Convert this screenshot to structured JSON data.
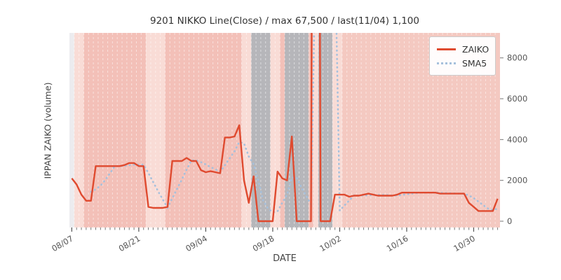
{
  "title": "9201 NIKKO Line(Close) / max 67,500 / last(11/04) 1,100",
  "axes": {
    "x_label": "DATE",
    "y_label": "IPPAN ZAIKO (volume)",
    "x_major_tick_labels": [
      "08/07",
      "08/21",
      "09/04",
      "09/18",
      "10/02",
      "10/16",
      "10/30"
    ],
    "x_major_tick_slots": [
      0,
      14,
      28,
      42,
      56,
      70,
      84
    ],
    "y_tick_values": [
      0,
      2000,
      4000,
      6000,
      8000
    ],
    "y_axis_side": "right",
    "y_value_max_visible": 9220,
    "x_total_slots": 90,
    "tick_color": "#555555"
  },
  "legend": {
    "position": "upper-right",
    "entries": [
      {
        "label": "ZAIKO",
        "style": "solid",
        "color": "#df4a2f"
      },
      {
        "label": "SMA5",
        "style": "dotted",
        "color": "#a6c0dc"
      }
    ]
  },
  "chart_data": {
    "type": "line",
    "title": "9201 NIKKO Line(Close) / max 67,500 / last(11/04) 1,100",
    "xlabel": "DATE",
    "ylabel": "IPPAN ZAIKO (volume)",
    "x_unit": "calendar-day index starting 08/07, major tick every 14 days",
    "ylim_visible": [
      -310,
      9220
    ],
    "max_value": 67500,
    "last_point": {
      "date": "11/04",
      "value": 1100
    },
    "series": [
      {
        "name": "ZAIKO",
        "color": "#df4a2f",
        "style": "solid",
        "values": [
          2100,
          1800,
          1300,
          1000,
          1000,
          2700,
          2700,
          2700,
          2700,
          2700,
          2700,
          2750,
          2850,
          2850,
          2700,
          2700,
          700,
          650,
          650,
          650,
          700,
          2950,
          2950,
          2950,
          3100,
          2950,
          2950,
          2500,
          2400,
          2450,
          2400,
          2350,
          4100,
          4100,
          4150,
          4700,
          2000,
          900,
          2200,
          0,
          0,
          0,
          0,
          2430,
          2100,
          2000,
          4150,
          0,
          0,
          0,
          0,
          67500,
          0,
          0,
          0,
          1300,
          1300,
          1300,
          1200,
          1250,
          1250,
          1300,
          1350,
          1300,
          1250,
          1250,
          1250,
          1250,
          1300,
          1400,
          1400,
          1400,
          1400,
          1400,
          1400,
          1400,
          1400,
          1350,
          1350,
          1350,
          1350,
          1350,
          1350,
          900,
          700,
          500,
          500,
          500,
          500,
          1100
        ]
      },
      {
        "name": "SMA5",
        "color": "#a6c0dc",
        "style": "dotted",
        "derived_from": "ZAIKO",
        "window": 5
      }
    ],
    "background_bands": {
      "colors": {
        "pale": "#ececef",
        "light": "#f9dcd6",
        "mid": "#f3c0b8",
        "rose": "#f4c9c1",
        "gray": "#b6b6ba"
      },
      "separator_color": "rgba(255,255,255,0.5)",
      "runs": [
        {
          "from": 0,
          "to": 1,
          "c": "pale"
        },
        {
          "from": 1,
          "to": 3,
          "c": "light"
        },
        {
          "from": 3,
          "to": 16,
          "c": "mid"
        },
        {
          "from": 16,
          "to": 20,
          "c": "light"
        },
        {
          "from": 20,
          "to": 36,
          "c": "mid"
        },
        {
          "from": 36,
          "to": 38,
          "c": "light"
        },
        {
          "from": 38,
          "to": 42,
          "c": "gray"
        },
        {
          "from": 42,
          "to": 44,
          "c": "light"
        },
        {
          "from": 44,
          "to": 45,
          "c": "mid"
        },
        {
          "from": 45,
          "to": 50,
          "c": "gray"
        },
        {
          "from": 50,
          "to": 51,
          "c": "mid"
        },
        {
          "from": 51,
          "to": 52,
          "c": "light"
        },
        {
          "from": 52,
          "to": 55,
          "c": "gray"
        },
        {
          "from": 55,
          "to": 57,
          "c": "light"
        },
        {
          "from": 57,
          "to": 90,
          "c": "rose"
        }
      ]
    }
  }
}
